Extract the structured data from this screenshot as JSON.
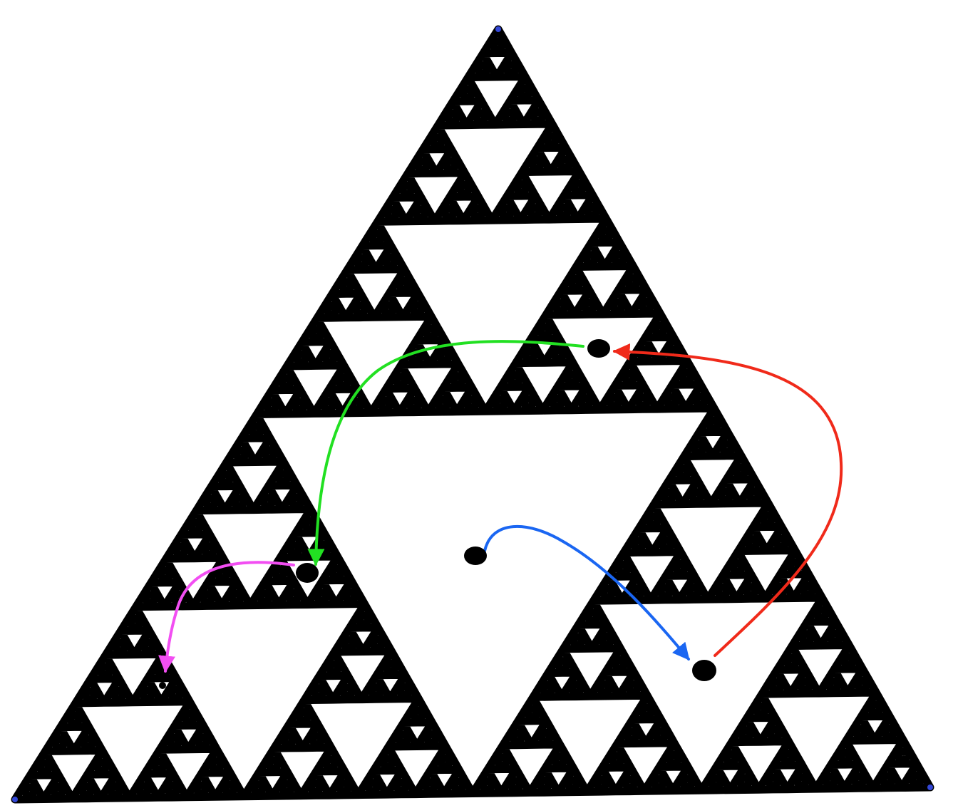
{
  "diagram": {
    "type": "sierpinski-chaos-game",
    "fractal_depth": 6,
    "fractal_color": "#000000",
    "vertex_marker_color": "#3347d6",
    "point_color": "#000000",
    "point_count": 5,
    "arrows": [
      {
        "name": "blue-arrow",
        "color": "#1a66f2"
      },
      {
        "name": "red-arrow",
        "color": "#f02a1a"
      },
      {
        "name": "green-arrow",
        "color": "#22e022"
      },
      {
        "name": "magenta-arrow",
        "color": "#f24ef2"
      }
    ]
  }
}
